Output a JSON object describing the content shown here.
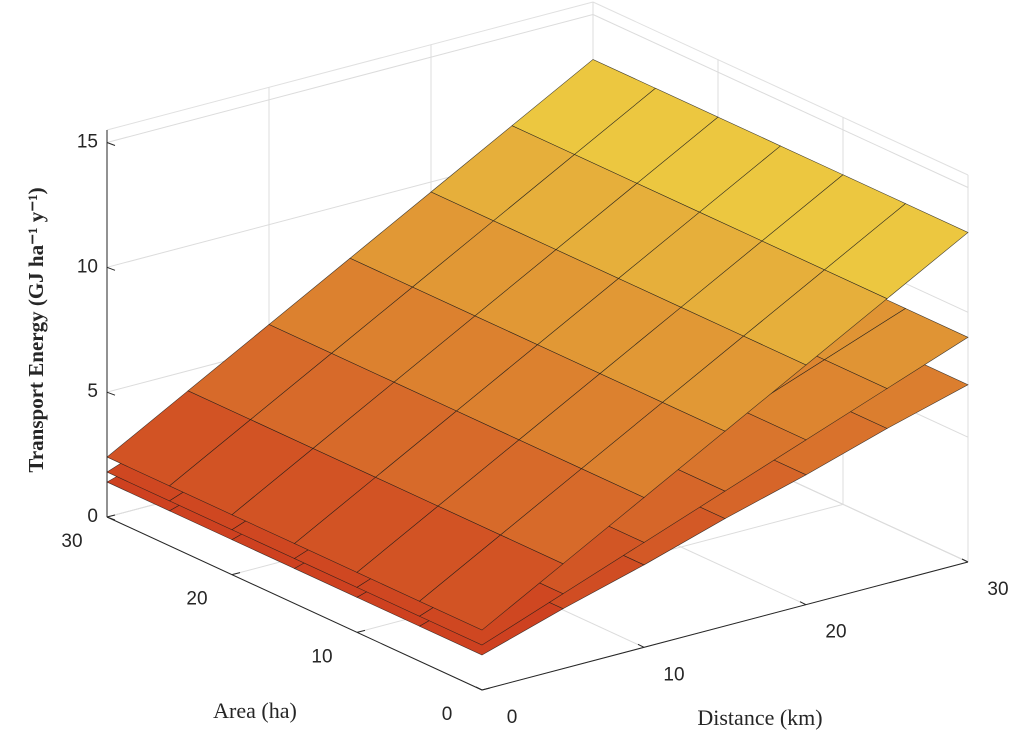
{
  "chart_data": {
    "type": "surface",
    "xlabel": "Distance (km)",
    "ylabel": "Area (ha)",
    "zlabel": "Transport Energy (GJ ha⁻¹ y⁻¹)",
    "x": [
      0,
      5,
      10,
      15,
      20,
      25,
      30
    ],
    "y": [
      0,
      5,
      10,
      15,
      20,
      25,
      30
    ],
    "xlim": [
      0,
      30
    ],
    "ylim": [
      0,
      30
    ],
    "zlim": [
      0,
      15.5
    ],
    "xticks": [
      0,
      10,
      20,
      30
    ],
    "yticks": [
      0,
      10,
      20,
      30
    ],
    "zticks": [
      0,
      5,
      10,
      15
    ],
    "grid": true,
    "colormap": [
      "#c8281a",
      "#f5f04a"
    ],
    "edgecolor": "#1a1a1a",
    "series": [
      {
        "z": [
          [
            1.4,
            2.4,
            3.3,
            4.3,
            5.2,
            6.2,
            7.1
          ],
          [
            1.4,
            2.4,
            3.3,
            4.3,
            5.2,
            6.2,
            7.1
          ],
          [
            1.4,
            2.4,
            3.3,
            4.3,
            5.2,
            6.2,
            7.1
          ],
          [
            1.4,
            2.4,
            3.3,
            4.3,
            5.2,
            6.2,
            7.1
          ],
          [
            1.4,
            2.4,
            3.3,
            4.3,
            5.2,
            6.2,
            7.1
          ],
          [
            1.4,
            2.4,
            3.3,
            4.3,
            5.2,
            6.2,
            7.1
          ],
          [
            1.4,
            2.4,
            3.3,
            4.3,
            5.2,
            6.2,
            7.1
          ]
        ]
      },
      {
        "z": [
          [
            1.8,
            3.0,
            4.2,
            5.4,
            6.6,
            7.8,
            9.0
          ],
          [
            1.8,
            3.0,
            4.2,
            5.4,
            6.6,
            7.8,
            9.0
          ],
          [
            1.8,
            3.0,
            4.2,
            5.4,
            6.6,
            7.8,
            9.0
          ],
          [
            1.8,
            3.0,
            4.2,
            5.4,
            6.6,
            7.8,
            9.0
          ],
          [
            1.8,
            3.0,
            4.2,
            5.4,
            6.6,
            7.8,
            9.0
          ],
          [
            1.8,
            3.0,
            4.2,
            5.4,
            6.6,
            7.8,
            9.0
          ],
          [
            1.8,
            3.0,
            4.2,
            5.4,
            6.6,
            7.8,
            9.0
          ]
        ]
      },
      {
        "z": [
          [
            2.4,
            4.2,
            6.0,
            7.8,
            9.6,
            11.4,
            13.2
          ],
          [
            2.4,
            4.2,
            6.0,
            7.8,
            9.6,
            11.4,
            13.2
          ],
          [
            2.4,
            4.2,
            6.0,
            7.8,
            9.6,
            11.4,
            13.2
          ],
          [
            2.4,
            4.2,
            6.0,
            7.8,
            9.6,
            11.4,
            13.2
          ],
          [
            2.4,
            4.2,
            6.0,
            7.8,
            9.6,
            11.4,
            13.2
          ],
          [
            2.4,
            4.2,
            6.0,
            7.8,
            9.6,
            11.4,
            13.2
          ],
          [
            2.4,
            4.2,
            6.0,
            7.8,
            9.6,
            11.4,
            13.2
          ]
        ]
      }
    ]
  }
}
